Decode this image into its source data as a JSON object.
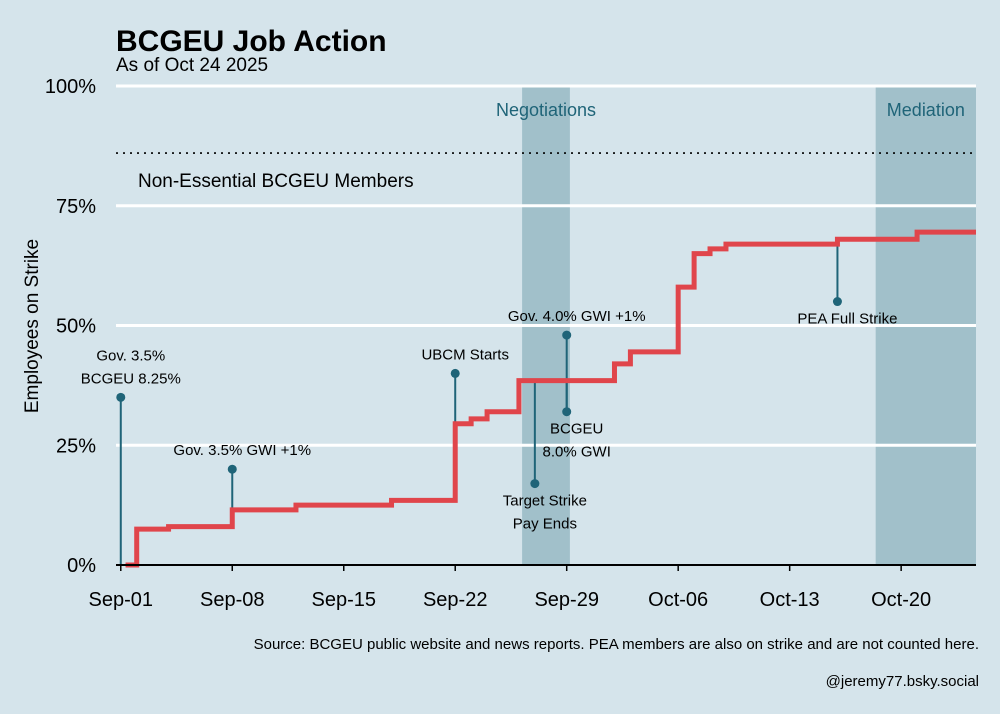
{
  "chart_data": {
    "type": "line",
    "step": true,
    "title": "BCGEU Job Action",
    "subtitle": "As of Oct 24 2025",
    "ylabel": "Employees on Strike",
    "xlabel": "",
    "ylim": [
      0,
      100
    ],
    "y_ticks": [
      {
        "value": 0,
        "label": "0%"
      },
      {
        "value": 25,
        "label": "25%"
      },
      {
        "value": 50,
        "label": "50%"
      },
      {
        "value": 75,
        "label": "75%"
      },
      {
        "value": 100,
        "label": "100%"
      }
    ],
    "x_domain": [
      -0.3,
      53.7
    ],
    "x_ticks": [
      {
        "day": 0,
        "label": "Sep-01"
      },
      {
        "day": 7,
        "label": "Sep-08"
      },
      {
        "day": 14,
        "label": "Sep-15"
      },
      {
        "day": 21,
        "label": "Sep-22"
      },
      {
        "day": 28,
        "label": "Sep-29"
      },
      {
        "day": 35,
        "label": "Oct-06"
      },
      {
        "day": 42,
        "label": "Oct-13"
      },
      {
        "day": 49,
        "label": "Oct-20"
      }
    ],
    "series": [
      {
        "name": "Employees on Strike",
        "color": "#e0454b",
        "points": [
          {
            "day": 0.3,
            "value": 0
          },
          {
            "day": 1.0,
            "value": 7.5
          },
          {
            "day": 3.0,
            "value": 8
          },
          {
            "day": 7.0,
            "value": 11.5
          },
          {
            "day": 11.0,
            "value": 12.5
          },
          {
            "day": 17.0,
            "value": 13.5
          },
          {
            "day": 21.0,
            "value": 29.5
          },
          {
            "day": 22.0,
            "value": 30.5
          },
          {
            "day": 23.0,
            "value": 32
          },
          {
            "day": 25.0,
            "value": 38.5
          },
          {
            "day": 31.0,
            "value": 42
          },
          {
            "day": 32.0,
            "value": 44.5
          },
          {
            "day": 35.0,
            "value": 58
          },
          {
            "day": 36.0,
            "value": 65
          },
          {
            "day": 37.0,
            "value": 66
          },
          {
            "day": 38.0,
            "value": 67
          },
          {
            "day": 45.0,
            "value": 68
          },
          {
            "day": 50.0,
            "value": 69.5
          },
          {
            "day": 53.7,
            "value": 69.5
          }
        ]
      }
    ],
    "shaded_periods": [
      {
        "label": "Negotiations",
        "start_day": 25.2,
        "end_day": 28.2,
        "color": "#a1c0ca",
        "edge_color": "#1f6478"
      },
      {
        "label": "Mediation",
        "start_day": 47.4,
        "end_day": 53.7,
        "color": "#a1c0ca",
        "edge_color": "#1f6478"
      }
    ],
    "reference_line": {
      "value": 86,
      "label": "Non-Essential BCGEU Members"
    },
    "annotations": [
      {
        "day": 0,
        "base": 0,
        "tip": 35,
        "lines": [
          "Gov. 3.5%",
          "BCGEU 8.25%"
        ]
      },
      {
        "day": 7,
        "base": 11.5,
        "tip": 20,
        "lines": [
          "Gov. 3.5% GWI +1%"
        ]
      },
      {
        "day": 21,
        "base": 29.5,
        "tip": 40,
        "lines": [
          "UBCM Starts"
        ]
      },
      {
        "day": 26,
        "base": 38.5,
        "tip": 17,
        "lines": [
          "Target Strike",
          "Pay Ends"
        ]
      },
      {
        "day": 28,
        "base": 32,
        "tip": 48,
        "lines": [
          "Gov. 4.0% GWI +1%"
        ]
      },
      {
        "day": 28,
        "base": 38.5,
        "tip": 32,
        "lines": [
          "BCGEU",
          "8.0% GWI"
        ]
      },
      {
        "day": 45,
        "base": 68,
        "tip": 55,
        "lines": [
          "PEA Full Strike"
        ]
      }
    ]
  },
  "footer": {
    "source": "Source: BCGEU public website and news reports. PEA members are also on strike and are not counted here.",
    "handle": "@jeremy77.bsky.social"
  },
  "colors": {
    "background": "#d5e4eb",
    "strike_line": "#e0454b",
    "annotation": "#1f6478",
    "shading": "#a1c0ca"
  }
}
